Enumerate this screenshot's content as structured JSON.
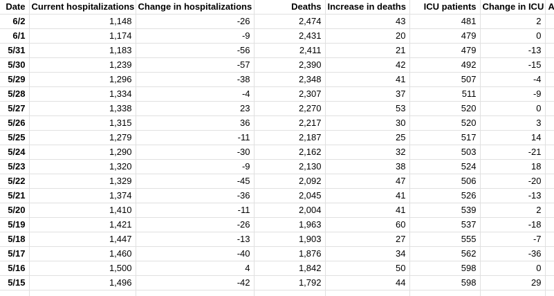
{
  "sheet": {
    "columns": [
      {
        "key": "date",
        "label": "Date"
      },
      {
        "key": "current-hospitalizations",
        "label": "Current hospitalizations"
      },
      {
        "key": "change-in-hospitalizations",
        "label": "Change in hospitalizations"
      },
      {
        "key": "deaths",
        "label": "Deaths"
      },
      {
        "key": "increase-in-deaths",
        "label": "Increase in deaths"
      },
      {
        "key": "icu-patients",
        "label": "ICU patients"
      },
      {
        "key": "change-in-icu",
        "label": "Change in ICU"
      },
      {
        "key": "truncated-next-column",
        "label": "A"
      }
    ],
    "rows": [
      [
        "6/2",
        "1,148",
        "-26",
        "2,474",
        "43",
        "481",
        "2",
        ""
      ],
      [
        "6/1",
        "1,174",
        "-9",
        "2,431",
        "20",
        "479",
        "0",
        ""
      ],
      [
        "5/31",
        "1,183",
        "-56",
        "2,411",
        "21",
        "479",
        "-13",
        ""
      ],
      [
        "5/30",
        "1,239",
        "-57",
        "2,390",
        "42",
        "492",
        "-15",
        ""
      ],
      [
        "5/29",
        "1,296",
        "-38",
        "2,348",
        "41",
        "507",
        "-4",
        ""
      ],
      [
        "5/28",
        "1,334",
        "-4",
        "2,307",
        "37",
        "511",
        "-9",
        ""
      ],
      [
        "5/27",
        "1,338",
        "23",
        "2,270",
        "53",
        "520",
        "0",
        ""
      ],
      [
        "5/26",
        "1,315",
        "36",
        "2,217",
        "30",
        "520",
        "3",
        ""
      ],
      [
        "5/25",
        "1,279",
        "-11",
        "2,187",
        "25",
        "517",
        "14",
        ""
      ],
      [
        "5/24",
        "1,290",
        "-30",
        "2,162",
        "32",
        "503",
        "-21",
        ""
      ],
      [
        "5/23",
        "1,320",
        "-9",
        "2,130",
        "38",
        "524",
        "18",
        ""
      ],
      [
        "5/22",
        "1,329",
        "-45",
        "2,092",
        "47",
        "506",
        "-20",
        ""
      ],
      [
        "5/21",
        "1,374",
        "-36",
        "2,045",
        "41",
        "526",
        "-13",
        ""
      ],
      [
        "5/20",
        "1,410",
        "-11",
        "2,004",
        "41",
        "539",
        "2",
        ""
      ],
      [
        "5/19",
        "1,421",
        "-26",
        "1,963",
        "60",
        "537",
        "-18",
        ""
      ],
      [
        "5/18",
        "1,447",
        "-13",
        "1,903",
        "27",
        "555",
        "-7",
        ""
      ],
      [
        "5/17",
        "1,460",
        "-40",
        "1,876",
        "34",
        "562",
        "-36",
        ""
      ],
      [
        "5/16",
        "1,500",
        "4",
        "1,842",
        "50",
        "598",
        "0",
        ""
      ],
      [
        "5/15",
        "1,496",
        "-42",
        "1,792",
        "44",
        "598",
        "29",
        ""
      ]
    ],
    "colors": {
      "gridline": "#e0e0e0",
      "text": "#000000",
      "background": "#ffffff"
    }
  }
}
